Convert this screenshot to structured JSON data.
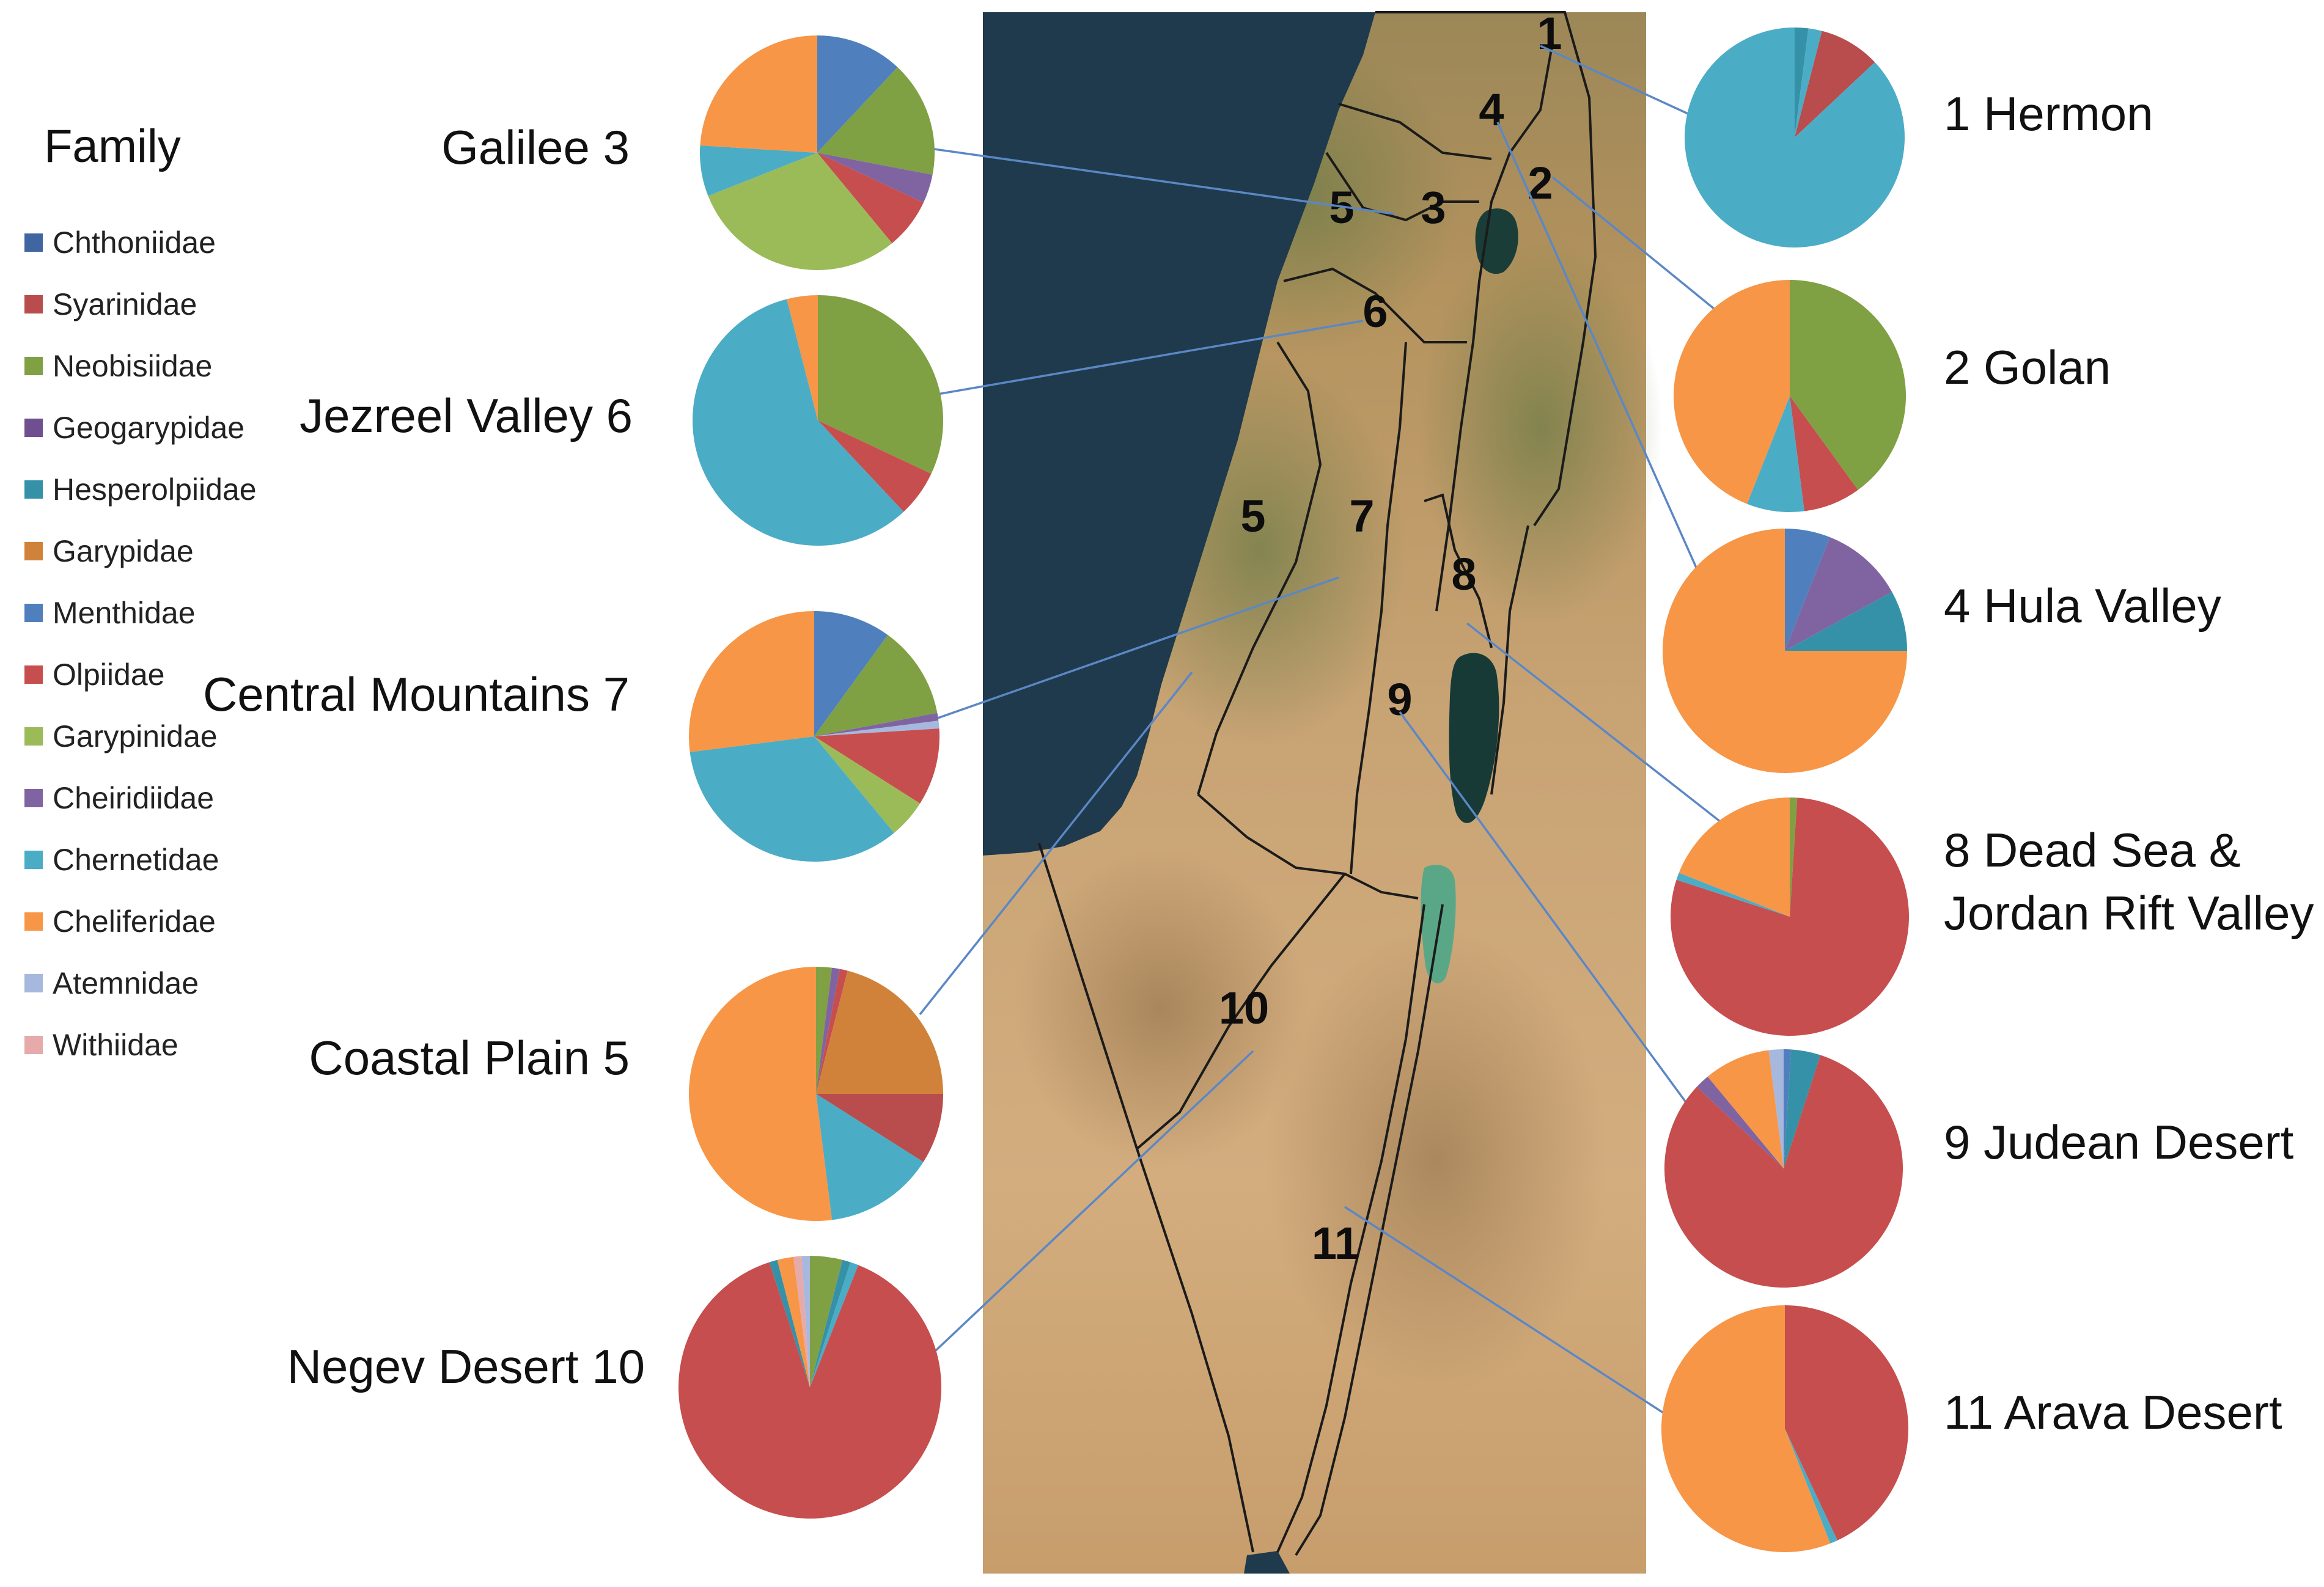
{
  "legend": {
    "title": "Family",
    "families": [
      {
        "name": "Chthoniidae",
        "color": "#3f66a0"
      },
      {
        "name": "Syarinidae",
        "color": "#b94c4c"
      },
      {
        "name": "Neobisiidae",
        "color": "#80a044"
      },
      {
        "name": "Geogarypidae",
        "color": "#6f4f90"
      },
      {
        "name": "Hesperolpiidae",
        "color": "#3591a8"
      },
      {
        "name": "Garypidae",
        "color": "#d0823a"
      },
      {
        "name": "Menthidae",
        "color": "#4f80bd"
      },
      {
        "name": "Olpiidae",
        "color": "#c74e4e"
      },
      {
        "name": "Garypinidae",
        "color": "#9bbb59"
      },
      {
        "name": "Cheiridiidae",
        "color": "#8064a2"
      },
      {
        "name": "Chernetidae",
        "color": "#4bacc6"
      },
      {
        "name": "Cheliferidae",
        "color": "#f79646"
      },
      {
        "name": "Atemnidae",
        "color": "#a6b8dd"
      },
      {
        "name": "Withiidae",
        "color": "#e5aaa9"
      }
    ]
  },
  "map_labels": [
    "1",
    "2",
    "3",
    "4",
    "5",
    "5",
    "6",
    "7",
    "8",
    "9",
    "10",
    "11"
  ],
  "chart_data": [
    {
      "type": "pie",
      "region": "Galilee 3",
      "slices": [
        {
          "family": "Menthidae",
          "value": 12
        },
        {
          "family": "Neobisiidae",
          "value": 16
        },
        {
          "family": "Cheiridiidae",
          "value": 4
        },
        {
          "family": "Olpiidae",
          "value": 7
        },
        {
          "family": "Garypinidae",
          "value": 30
        },
        {
          "family": "Chernetidae",
          "value": 7
        },
        {
          "family": "Cheliferidae",
          "value": 24
        }
      ]
    },
    {
      "type": "pie",
      "region": "Jezreel Valley 6",
      "slices": [
        {
          "family": "Neobisiidae",
          "value": 32
        },
        {
          "family": "Olpiidae",
          "value": 6
        },
        {
          "family": "Chernetidae",
          "value": 58
        },
        {
          "family": "Cheliferidae",
          "value": 4
        }
      ]
    },
    {
      "type": "pie",
      "region": "Central Mountains 7",
      "slices": [
        {
          "family": "Menthidae",
          "value": 10
        },
        {
          "family": "Neobisiidae",
          "value": 12
        },
        {
          "family": "Cheiridiidae",
          "value": 1
        },
        {
          "family": "Atemnidae",
          "value": 1
        },
        {
          "family": "Olpiidae",
          "value": 10
        },
        {
          "family": "Garypinidae",
          "value": 5
        },
        {
          "family": "Chernetidae",
          "value": 34
        },
        {
          "family": "Cheliferidae",
          "value": 27
        }
      ]
    },
    {
      "type": "pie",
      "region": "Coastal Plain 5",
      "slices": [
        {
          "family": "Neobisiidae",
          "value": 2
        },
        {
          "family": "Cheiridiidae",
          "value": 1
        },
        {
          "family": "Olpiidae",
          "value": 1
        },
        {
          "family": "Garypidae",
          "value": 21
        },
        {
          "family": "Syarinidae",
          "value": 9
        },
        {
          "family": "Chernetidae",
          "value": 14
        },
        {
          "family": "Cheliferidae",
          "value": 52
        }
      ]
    },
    {
      "type": "pie",
      "region": "Negev Desert 10",
      "slices": [
        {
          "family": "Neobisiidae",
          "value": 4
        },
        {
          "family": "Hesperolpiidae",
          "value": 1
        },
        {
          "family": "Chernetidae",
          "value": 1
        },
        {
          "family": "Olpiidae",
          "value": 89
        },
        {
          "family": "Hesperolpiidae",
          "value": 1
        },
        {
          "family": "Cheliferidae",
          "value": 2
        },
        {
          "family": "Withiidae",
          "value": 1
        },
        {
          "family": "Atemnidae",
          "value": 1
        }
      ]
    },
    {
      "type": "pie",
      "region": "1 Hermon",
      "slices": [
        {
          "family": "Hesperolpiidae",
          "value": 2
        },
        {
          "family": "Chernetidae",
          "value": 2
        },
        {
          "family": "Syarinidae",
          "value": 9
        },
        {
          "family": "Chernetidae",
          "value": 87
        }
      ]
    },
    {
      "type": "pie",
      "region": "2 Golan",
      "slices": [
        {
          "family": "Neobisiidae",
          "value": 40
        },
        {
          "family": "Olpiidae",
          "value": 8
        },
        {
          "family": "Chernetidae",
          "value": 8
        },
        {
          "family": "Cheliferidae",
          "value": 44
        }
      ]
    },
    {
      "type": "pie",
      "region": "4 Hula Valley",
      "slices": [
        {
          "family": "Menthidae",
          "value": 6
        },
        {
          "family": "Cheiridiidae",
          "value": 11
        },
        {
          "family": "Hesperolpiidae",
          "value": 8
        },
        {
          "family": "Cheliferidae",
          "value": 75
        }
      ]
    },
    {
      "type": "pie",
      "region": "8 Dead Sea &\nJordan Rift Valley",
      "slices": [
        {
          "family": "Neobisiidae",
          "value": 1
        },
        {
          "family": "Olpiidae",
          "value": 79
        },
        {
          "family": "Chernetidae",
          "value": 1
        },
        {
          "family": "Cheliferidae",
          "value": 19
        }
      ]
    },
    {
      "type": "pie",
      "region": "9 Judean Desert",
      "slices": [
        {
          "family": "Menthidae",
          "value": 1
        },
        {
          "family": "Hesperolpiidae",
          "value": 4
        },
        {
          "family": "Olpiidae",
          "value": 82
        },
        {
          "family": "Cheiridiidae",
          "value": 2
        },
        {
          "family": "Cheliferidae",
          "value": 9
        },
        {
          "family": "Atemnidae",
          "value": 2
        }
      ]
    },
    {
      "type": "pie",
      "region": "11 Arava Desert",
      "slices": [
        {
          "family": "Olpiidae",
          "value": 43
        },
        {
          "family": "Chernetidae",
          "value": 1
        },
        {
          "family": "Cheliferidae",
          "value": 56
        }
      ]
    }
  ]
}
